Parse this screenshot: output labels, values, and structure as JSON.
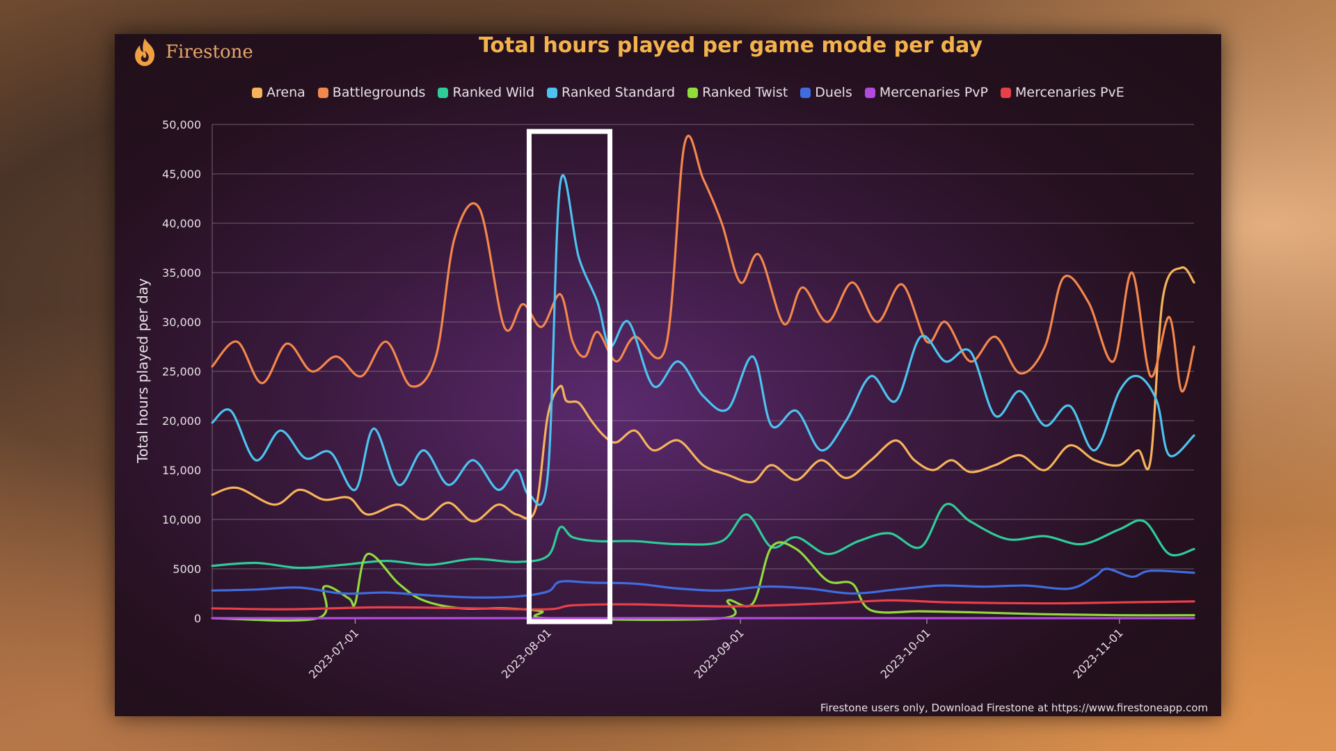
{
  "brand": {
    "name": "Firestone",
    "icon": "flame-icon",
    "color": "#e9a86a"
  },
  "footer": {
    "text": "Firestone users only, Download Firestone at https://www.firestoneapp.com"
  },
  "highlight": {
    "x_range": [
      "2023-07-29",
      "2023-08-11"
    ]
  },
  "chart_data": {
    "type": "line",
    "title": "Total hours played per game mode per day",
    "xlabel": "",
    "ylabel": "Total hours played per day",
    "x_axis": {
      "type": "date",
      "range": [
        "2023-06-08",
        "2023-11-13"
      ],
      "tick_labels": [
        "2023-07-01",
        "2023-08-01",
        "2023-09-01",
        "2023-10-01",
        "2023-11-01"
      ]
    },
    "ylim": [
      0,
      50000
    ],
    "y_ticks": [
      0,
      5000,
      10000,
      15000,
      20000,
      25000,
      30000,
      35000,
      40000,
      45000,
      50000
    ],
    "y_tick_labels": [
      "0",
      "5000",
      "10,000",
      "15,000",
      "20,000",
      "25,000",
      "30,000",
      "35,000",
      "40,000",
      "45,000",
      "50,000"
    ],
    "grid": true,
    "legend_position": "top",
    "series": [
      {
        "name": "Arena",
        "color": "#f6b35a",
        "points": [
          [
            "2023-06-08",
            12500
          ],
          [
            "2023-06-12",
            13200
          ],
          [
            "2023-06-18",
            11500
          ],
          [
            "2023-06-22",
            13000
          ],
          [
            "2023-06-26",
            12000
          ],
          [
            "2023-06-30",
            12200
          ],
          [
            "2023-07-03",
            10500
          ],
          [
            "2023-07-08",
            11500
          ],
          [
            "2023-07-12",
            10000
          ],
          [
            "2023-07-16",
            11700
          ],
          [
            "2023-07-20",
            9800
          ],
          [
            "2023-07-24",
            11500
          ],
          [
            "2023-07-27",
            10500
          ],
          [
            "2023-07-30",
            11000
          ],
          [
            "2023-08-01",
            20500
          ],
          [
            "2023-08-03",
            23500
          ],
          [
            "2023-08-04",
            22000
          ],
          [
            "2023-08-06",
            21800
          ],
          [
            "2023-08-08",
            20000
          ],
          [
            "2023-08-10",
            18500
          ],
          [
            "2023-08-12",
            17800
          ],
          [
            "2023-08-15",
            19000
          ],
          [
            "2023-08-18",
            17000
          ],
          [
            "2023-08-22",
            18000
          ],
          [
            "2023-08-26",
            15500
          ],
          [
            "2023-08-30",
            14500
          ],
          [
            "2023-09-03",
            13800
          ],
          [
            "2023-09-06",
            15500
          ],
          [
            "2023-09-10",
            14000
          ],
          [
            "2023-09-14",
            16000
          ],
          [
            "2023-09-18",
            14200
          ],
          [
            "2023-09-22",
            16000
          ],
          [
            "2023-09-26",
            18000
          ],
          [
            "2023-09-29",
            16000
          ],
          [
            "2023-10-02",
            15000
          ],
          [
            "2023-10-05",
            16000
          ],
          [
            "2023-10-08",
            14800
          ],
          [
            "2023-10-12",
            15500
          ],
          [
            "2023-10-16",
            16500
          ],
          [
            "2023-10-20",
            15000
          ],
          [
            "2023-10-24",
            17500
          ],
          [
            "2023-10-28",
            16000
          ],
          [
            "2023-11-01",
            15500
          ],
          [
            "2023-11-04",
            17000
          ],
          [
            "2023-11-06",
            16000
          ],
          [
            "2023-11-08",
            32500
          ],
          [
            "2023-11-11",
            35500
          ],
          [
            "2023-11-13",
            34000
          ]
        ]
      },
      {
        "name": "Battlegrounds",
        "color": "#f4874b",
        "points": [
          [
            "2023-06-08",
            25500
          ],
          [
            "2023-06-12",
            28000
          ],
          [
            "2023-06-16",
            23800
          ],
          [
            "2023-06-20",
            27800
          ],
          [
            "2023-06-24",
            25000
          ],
          [
            "2023-06-28",
            26500
          ],
          [
            "2023-07-02",
            24500
          ],
          [
            "2023-07-06",
            28000
          ],
          [
            "2023-07-10",
            23500
          ],
          [
            "2023-07-14",
            26500
          ],
          [
            "2023-07-17",
            38500
          ],
          [
            "2023-07-21",
            41500
          ],
          [
            "2023-07-25",
            29500
          ],
          [
            "2023-07-28",
            31800
          ],
          [
            "2023-07-31",
            29500
          ],
          [
            "2023-08-03",
            32800
          ],
          [
            "2023-08-05",
            28000
          ],
          [
            "2023-08-07",
            26500
          ],
          [
            "2023-08-09",
            29000
          ],
          [
            "2023-08-12",
            26000
          ],
          [
            "2023-08-15",
            28500
          ],
          [
            "2023-08-20",
            27500
          ],
          [
            "2023-08-23",
            48000
          ],
          [
            "2023-08-26",
            44500
          ],
          [
            "2023-08-29",
            40000
          ],
          [
            "2023-09-01",
            34000
          ],
          [
            "2023-09-04",
            36800
          ],
          [
            "2023-09-08",
            29800
          ],
          [
            "2023-09-11",
            33500
          ],
          [
            "2023-09-15",
            30000
          ],
          [
            "2023-09-19",
            34000
          ],
          [
            "2023-09-23",
            30000
          ],
          [
            "2023-09-27",
            33800
          ],
          [
            "2023-10-01",
            28000
          ],
          [
            "2023-10-04",
            30000
          ],
          [
            "2023-10-08",
            26000
          ],
          [
            "2023-10-12",
            28500
          ],
          [
            "2023-10-16",
            24800
          ],
          [
            "2023-10-20",
            27500
          ],
          [
            "2023-10-23",
            34500
          ],
          [
            "2023-10-27",
            32000
          ],
          [
            "2023-10-31",
            26000
          ],
          [
            "2023-11-03",
            35000
          ],
          [
            "2023-11-06",
            24500
          ],
          [
            "2023-11-09",
            30500
          ],
          [
            "2023-11-11",
            23000
          ],
          [
            "2023-11-13",
            27500
          ]
        ]
      },
      {
        "name": "Ranked Wild",
        "color": "#2ecc98",
        "points": [
          [
            "2023-06-08",
            5300
          ],
          [
            "2023-06-15",
            5600
          ],
          [
            "2023-06-22",
            5100
          ],
          [
            "2023-06-29",
            5400
          ],
          [
            "2023-07-06",
            5800
          ],
          [
            "2023-07-13",
            5400
          ],
          [
            "2023-07-20",
            6000
          ],
          [
            "2023-07-27",
            5700
          ],
          [
            "2023-08-01",
            6300
          ],
          [
            "2023-08-03",
            9200
          ],
          [
            "2023-08-05",
            8200
          ],
          [
            "2023-08-09",
            7800
          ],
          [
            "2023-08-15",
            7800
          ],
          [
            "2023-08-22",
            7500
          ],
          [
            "2023-08-29",
            7800
          ],
          [
            "2023-09-02",
            10500
          ],
          [
            "2023-09-06",
            7200
          ],
          [
            "2023-09-10",
            8200
          ],
          [
            "2023-09-15",
            6500
          ],
          [
            "2023-09-20",
            7800
          ],
          [
            "2023-09-25",
            8600
          ],
          [
            "2023-09-30",
            7200
          ],
          [
            "2023-10-04",
            11500
          ],
          [
            "2023-10-08",
            9800
          ],
          [
            "2023-10-14",
            8000
          ],
          [
            "2023-10-20",
            8300
          ],
          [
            "2023-10-26",
            7500
          ],
          [
            "2023-11-01",
            9000
          ],
          [
            "2023-11-05",
            9800
          ],
          [
            "2023-11-09",
            6500
          ],
          [
            "2023-11-13",
            7000
          ]
        ]
      },
      {
        "name": "Ranked Standard",
        "color": "#4cc3f0",
        "points": [
          [
            "2023-06-08",
            19800
          ],
          [
            "2023-06-11",
            21000
          ],
          [
            "2023-06-15",
            16000
          ],
          [
            "2023-06-19",
            19000
          ],
          [
            "2023-06-23",
            16200
          ],
          [
            "2023-06-27",
            16800
          ],
          [
            "2023-07-01",
            13000
          ],
          [
            "2023-07-04",
            19200
          ],
          [
            "2023-07-08",
            13500
          ],
          [
            "2023-07-12",
            17000
          ],
          [
            "2023-07-16",
            13500
          ],
          [
            "2023-07-20",
            16000
          ],
          [
            "2023-07-24",
            13000
          ],
          [
            "2023-07-27",
            15000
          ],
          [
            "2023-07-29",
            12500
          ],
          [
            "2023-08-01",
            14500
          ],
          [
            "2023-08-03",
            44000
          ],
          [
            "2023-08-06",
            36500
          ],
          [
            "2023-08-09",
            32000
          ],
          [
            "2023-08-11",
            27500
          ],
          [
            "2023-08-14",
            30000
          ],
          [
            "2023-08-18",
            23500
          ],
          [
            "2023-08-22",
            26000
          ],
          [
            "2023-08-26",
            22500
          ],
          [
            "2023-08-30",
            21200
          ],
          [
            "2023-09-03",
            26500
          ],
          [
            "2023-09-06",
            19500
          ],
          [
            "2023-09-10",
            21000
          ],
          [
            "2023-09-14",
            17000
          ],
          [
            "2023-09-18",
            20000
          ],
          [
            "2023-09-22",
            24500
          ],
          [
            "2023-09-26",
            22000
          ],
          [
            "2023-09-30",
            28500
          ],
          [
            "2023-10-04",
            26000
          ],
          [
            "2023-10-08",
            27000
          ],
          [
            "2023-10-12",
            20500
          ],
          [
            "2023-10-16",
            23000
          ],
          [
            "2023-10-20",
            19500
          ],
          [
            "2023-10-24",
            21500
          ],
          [
            "2023-10-28",
            17000
          ],
          [
            "2023-11-01",
            23000
          ],
          [
            "2023-11-04",
            24500
          ],
          [
            "2023-11-07",
            22000
          ],
          [
            "2023-11-09",
            16500
          ],
          [
            "2023-11-13",
            18500
          ]
        ]
      },
      {
        "name": "Ranked Twist",
        "color": "#8fdc3c",
        "points": [
          [
            "2023-06-08",
            0
          ],
          [
            "2023-06-25",
            0
          ],
          [
            "2023-06-26",
            3200
          ],
          [
            "2023-06-30",
            2000
          ],
          [
            "2023-07-01",
            1500
          ],
          [
            "2023-07-03",
            6500
          ],
          [
            "2023-07-08",
            3500
          ],
          [
            "2023-07-12",
            1800
          ],
          [
            "2023-07-18",
            1000
          ],
          [
            "2023-07-25",
            1000
          ],
          [
            "2023-07-31",
            700
          ],
          [
            "2023-08-01",
            0
          ],
          [
            "2023-08-29",
            0
          ],
          [
            "2023-08-30",
            1800
          ],
          [
            "2023-09-03",
            1500
          ],
          [
            "2023-09-06",
            7200
          ],
          [
            "2023-09-10",
            7000
          ],
          [
            "2023-09-15",
            3800
          ],
          [
            "2023-09-19",
            3500
          ],
          [
            "2023-09-22",
            800
          ],
          [
            "2023-09-30",
            700
          ],
          [
            "2023-10-08",
            600
          ],
          [
            "2023-10-20",
            400
          ],
          [
            "2023-11-01",
            300
          ],
          [
            "2023-11-13",
            300
          ]
        ]
      },
      {
        "name": "Duels",
        "color": "#3f6de0",
        "points": [
          [
            "2023-06-08",
            2800
          ],
          [
            "2023-06-15",
            2900
          ],
          [
            "2023-06-22",
            3100
          ],
          [
            "2023-06-29",
            2500
          ],
          [
            "2023-07-06",
            2600
          ],
          [
            "2023-07-13",
            2300
          ],
          [
            "2023-07-20",
            2100
          ],
          [
            "2023-07-27",
            2200
          ],
          [
            "2023-08-01",
            2700
          ],
          [
            "2023-08-03",
            3700
          ],
          [
            "2023-08-08",
            3600
          ],
          [
            "2023-08-15",
            3500
          ],
          [
            "2023-08-22",
            3000
          ],
          [
            "2023-08-29",
            2800
          ],
          [
            "2023-09-05",
            3200
          ],
          [
            "2023-09-12",
            3000
          ],
          [
            "2023-09-19",
            2500
          ],
          [
            "2023-09-26",
            2900
          ],
          [
            "2023-10-03",
            3300
          ],
          [
            "2023-10-10",
            3200
          ],
          [
            "2023-10-17",
            3300
          ],
          [
            "2023-10-24",
            3000
          ],
          [
            "2023-10-28",
            4200
          ],
          [
            "2023-10-30",
            5000
          ],
          [
            "2023-11-03",
            4200
          ],
          [
            "2023-11-06",
            4800
          ],
          [
            "2023-11-13",
            4600
          ]
        ]
      },
      {
        "name": "Mercenaries PvP",
        "color": "#b24ae0",
        "points": [
          [
            "2023-06-08",
            0
          ],
          [
            "2023-11-13",
            0
          ]
        ]
      },
      {
        "name": "Mercenaries PvE",
        "color": "#e8404a",
        "points": [
          [
            "2023-06-08",
            1000
          ],
          [
            "2023-06-20",
            900
          ],
          [
            "2023-07-05",
            1100
          ],
          [
            "2023-07-20",
            1000
          ],
          [
            "2023-08-01",
            900
          ],
          [
            "2023-08-05",
            1300
          ],
          [
            "2023-08-15",
            1400
          ],
          [
            "2023-08-30",
            1200
          ],
          [
            "2023-09-15",
            1500
          ],
          [
            "2023-09-25",
            1800
          ],
          [
            "2023-10-05",
            1600
          ],
          [
            "2023-10-20",
            1500
          ],
          [
            "2023-11-01",
            1600
          ],
          [
            "2023-11-13",
            1700
          ]
        ]
      }
    ]
  }
}
